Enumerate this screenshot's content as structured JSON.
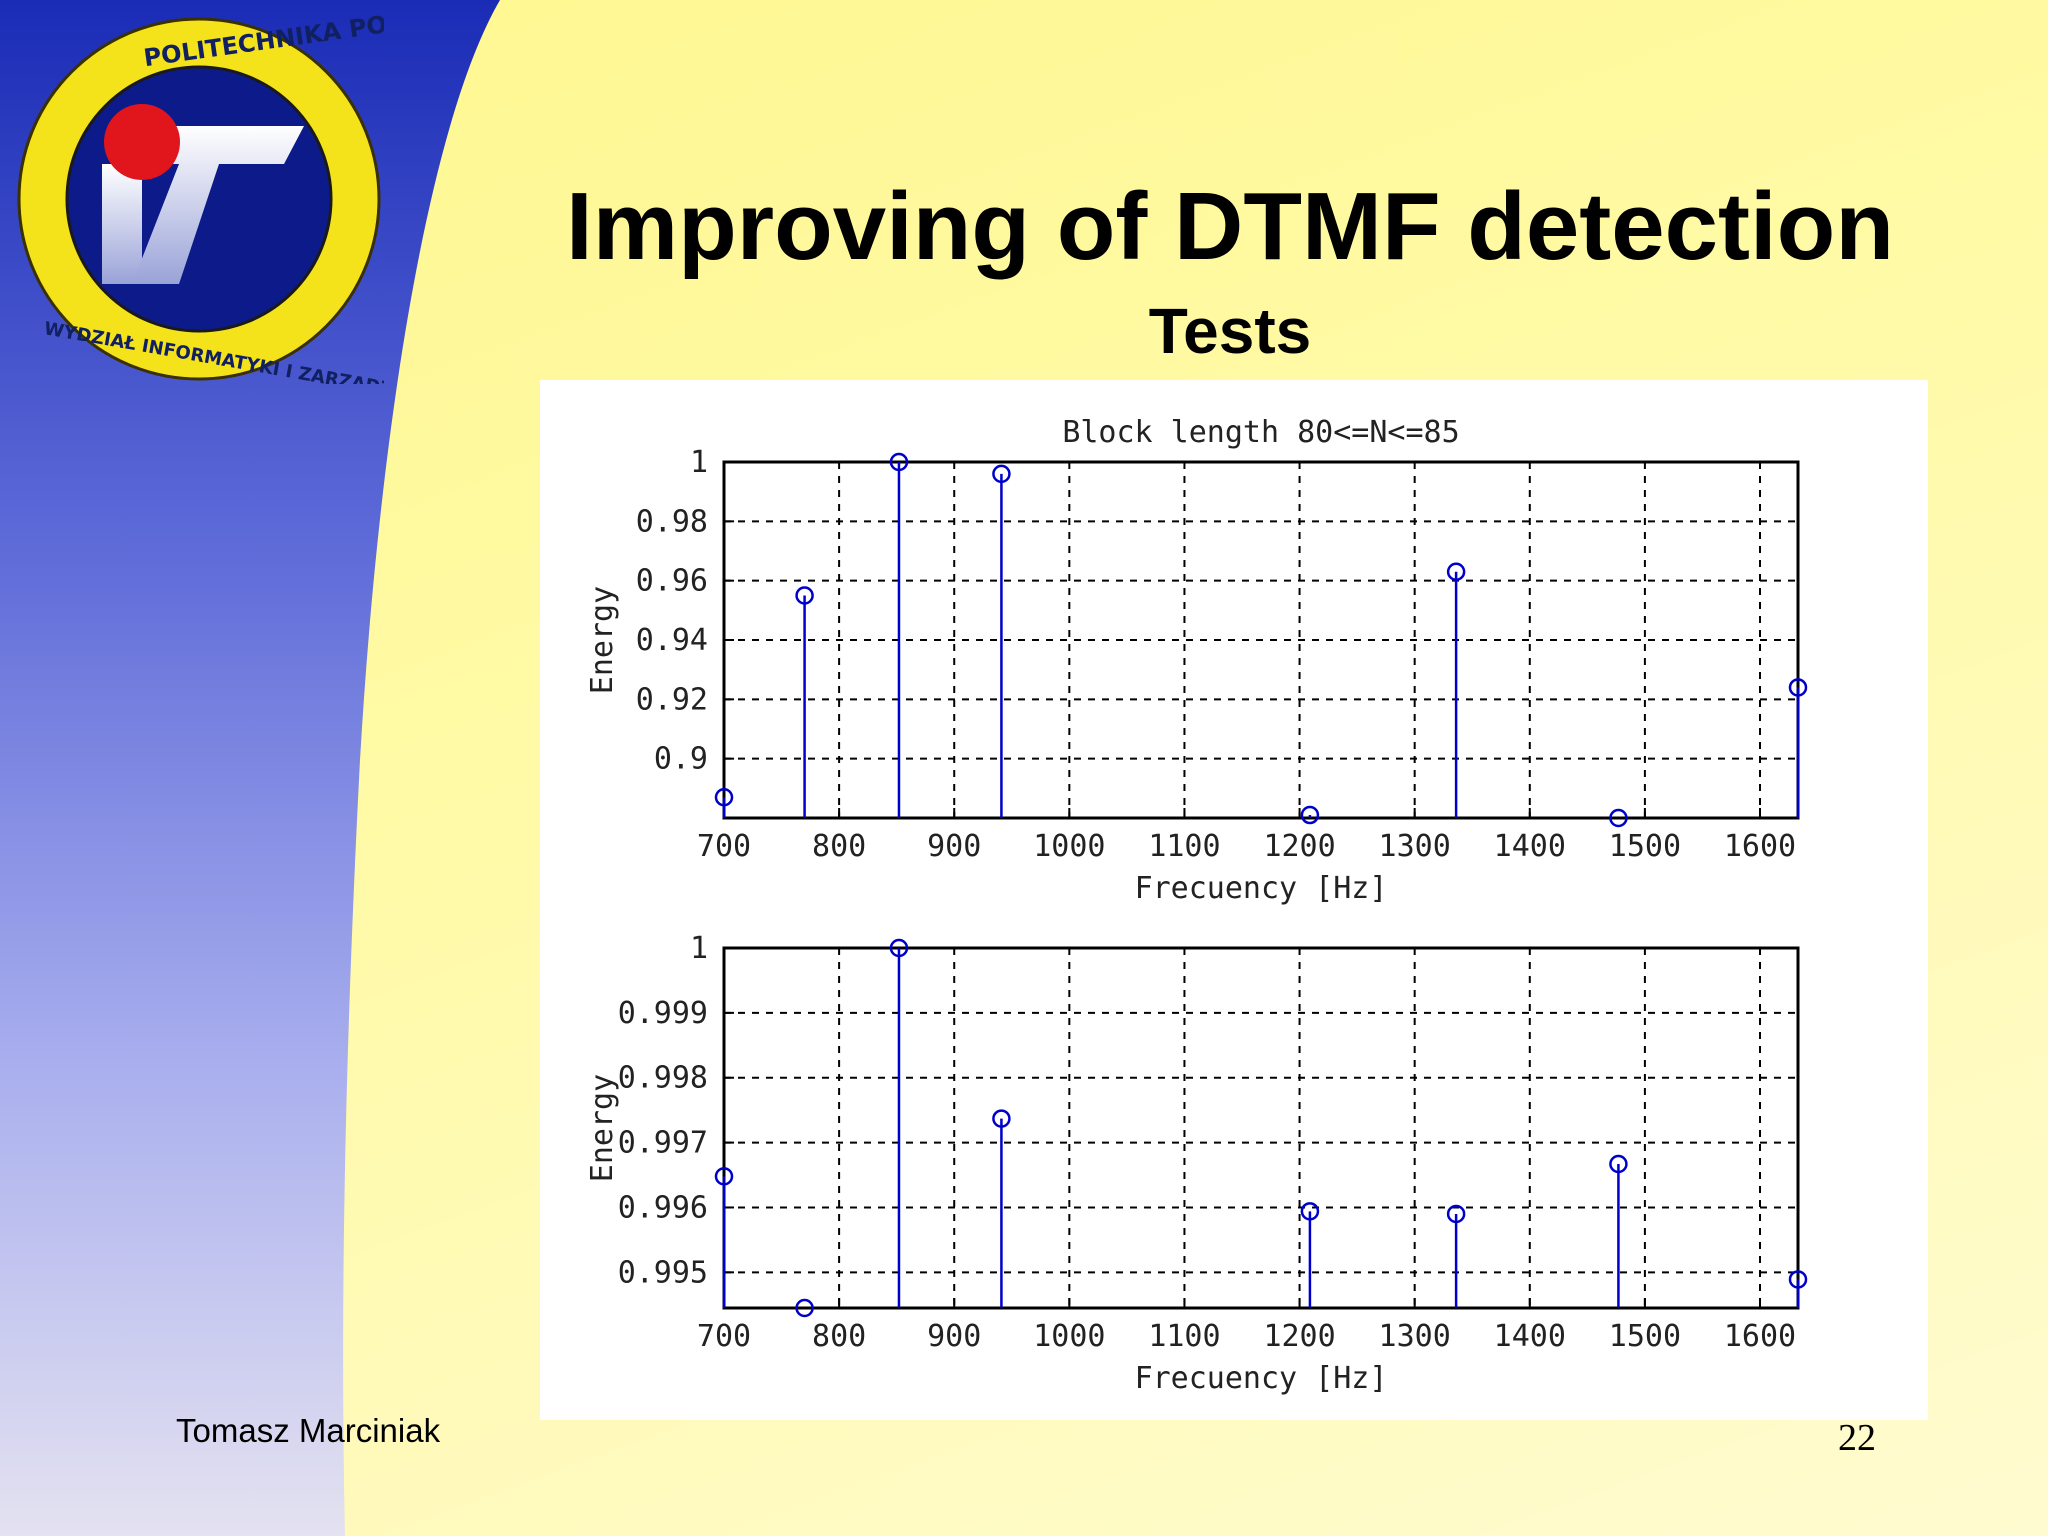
{
  "slide": {
    "title": "Improving of DTMF detection",
    "subtitle": "Tests",
    "author": "Tomasz Marciniak",
    "page_number": "22"
  },
  "logo": {
    "ring_text_top": "POLITECHNIKA POZNAŃSKA",
    "ring_text_bottom": "WYDZIAŁ INFORMATYKI I ZARZĄDZANIA",
    "letters": "iz"
  },
  "colors": {
    "stem": "#0000cc",
    "band_blue": "#1a2fb8",
    "background_yellow": "#fff78e",
    "logo_ring": "#f4e21a",
    "logo_dot": "#e0161c"
  },
  "chart_data": [
    {
      "type": "stem",
      "title": "Block length 80<=N<=85",
      "xlabel": "Frecuency [Hz]",
      "ylabel": "Energy",
      "xlim": [
        700,
        1633
      ],
      "ylim": [
        0.88,
        1.0
      ],
      "xticks": [
        700,
        800,
        900,
        1000,
        1100,
        1200,
        1300,
        1400,
        1500,
        1600
      ],
      "xtick_labels": [
        "700",
        "800",
        "900",
        "1000",
        "1100",
        "1200",
        "1300",
        "1400",
        "1500",
        "1600"
      ],
      "yticks": [
        0.9,
        0.92,
        0.94,
        0.96,
        0.98,
        1.0
      ],
      "ytick_labels": [
        "0.9",
        "0.92",
        "0.94",
        "0.96",
        "0.98",
        "1"
      ],
      "grid": true,
      "x": [
        697,
        770,
        852,
        941,
        1209,
        1336,
        1477,
        1633
      ],
      "y": [
        0.887,
        0.955,
        1.0,
        0.996,
        0.881,
        0.963,
        0.88,
        0.924
      ]
    },
    {
      "type": "stem",
      "title": "",
      "xlabel": "Frecuency [Hz]",
      "ylabel": "Energy",
      "xlim": [
        700,
        1633
      ],
      "ylim": [
        0.99445,
        1.0
      ],
      "xticks": [
        700,
        800,
        900,
        1000,
        1100,
        1200,
        1300,
        1400,
        1500,
        1600
      ],
      "xtick_labels": [
        "700",
        "800",
        "900",
        "1000",
        "1100",
        "1200",
        "1300",
        "1400",
        "1500",
        "1600"
      ],
      "yticks": [
        0.995,
        0.996,
        0.997,
        0.998,
        0.999,
        1.0
      ],
      "ytick_labels": [
        "0.995",
        "0.996",
        "0.997",
        "0.998",
        "0.999",
        "1"
      ],
      "grid": true,
      "x": [
        697,
        770,
        852,
        941,
        1209,
        1336,
        1477,
        1633
      ],
      "y": [
        0.99648,
        0.99445,
        1.0,
        0.99737,
        0.99594,
        0.9959,
        0.99667,
        0.99489
      ]
    }
  ]
}
